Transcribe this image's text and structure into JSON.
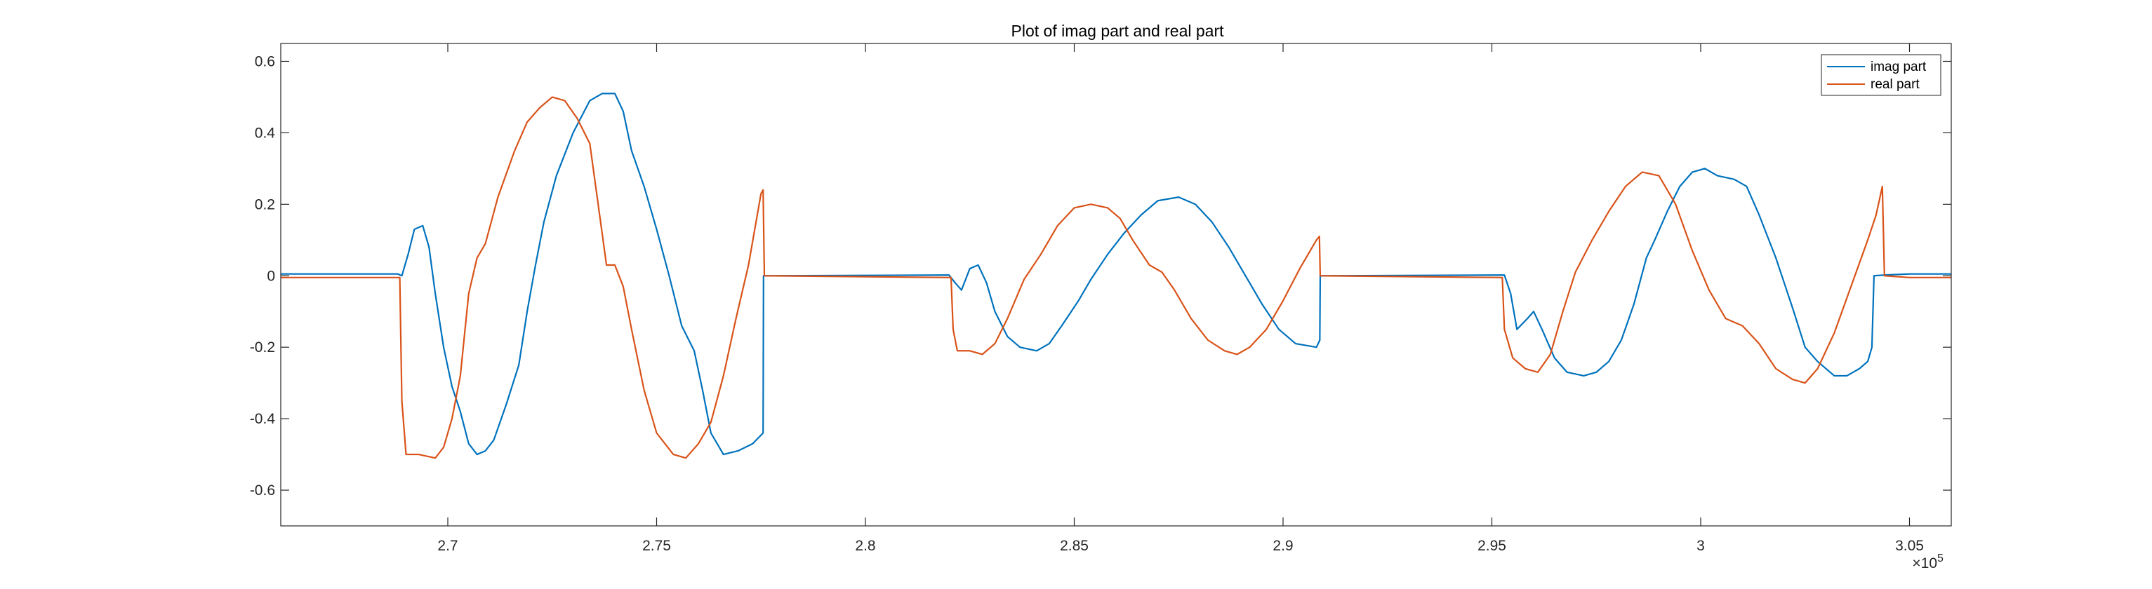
{
  "chart_data": {
    "type": "line",
    "title": "Plot of imag part and real part",
    "xlabel": "",
    "ylabel": "",
    "x_exponent_label": "×10",
    "x_exponent_power": "5",
    "xlim": [
      266000,
      306000
    ],
    "ylim": [
      -0.7,
      0.65
    ],
    "xticks": [
      270000,
      275000,
      280000,
      285000,
      290000,
      295000,
      300000,
      305000
    ],
    "xtick_labels": [
      "2.7",
      "2.75",
      "2.8",
      "2.85",
      "2.9",
      "2.95",
      "3",
      "3.05"
    ],
    "yticks": [
      -0.6,
      -0.4,
      -0.2,
      0,
      0.2,
      0.4,
      0.6
    ],
    "ytick_labels": [
      "-0.6",
      "-0.4",
      "-0.2",
      "0",
      "0.2",
      "0.4",
      "0.6"
    ],
    "grid": false,
    "legend_position": "top-right",
    "series": [
      {
        "name": "imag part",
        "color": "#0072BD",
        "points": [
          [
            266000,
            0.005
          ],
          [
            268800,
            0.005
          ],
          [
            268900,
            0.0
          ],
          [
            269050,
            0.06
          ],
          [
            269200,
            0.13
          ],
          [
            269400,
            0.14
          ],
          [
            269550,
            0.08
          ],
          [
            269700,
            -0.05
          ],
          [
            269900,
            -0.2
          ],
          [
            270100,
            -0.31
          ],
          [
            270300,
            -0.38
          ],
          [
            270500,
            -0.47
          ],
          [
            270700,
            -0.5
          ],
          [
            270900,
            -0.49
          ],
          [
            271100,
            -0.46
          ],
          [
            271400,
            -0.36
          ],
          [
            271700,
            -0.25
          ],
          [
            271900,
            -0.1
          ],
          [
            272100,
            0.03
          ],
          [
            272300,
            0.15
          ],
          [
            272600,
            0.28
          ],
          [
            273000,
            0.4
          ],
          [
            273400,
            0.49
          ],
          [
            273700,
            0.51
          ],
          [
            274000,
            0.51
          ],
          [
            274200,
            0.46
          ],
          [
            274400,
            0.35
          ],
          [
            274700,
            0.25
          ],
          [
            275000,
            0.13
          ],
          [
            275300,
            0.0
          ],
          [
            275600,
            -0.14
          ],
          [
            275900,
            -0.21
          ],
          [
            276100,
            -0.32
          ],
          [
            276300,
            -0.44
          ],
          [
            276600,
            -0.5
          ],
          [
            276950,
            -0.49
          ],
          [
            277300,
            -0.47
          ],
          [
            277550,
            -0.44
          ],
          [
            277560,
            0.0
          ],
          [
            282000,
            0.002
          ],
          [
            282150,
            -0.02
          ],
          [
            282300,
            -0.04
          ],
          [
            282500,
            0.02
          ],
          [
            282700,
            0.03
          ],
          [
            282900,
            -0.02
          ],
          [
            283100,
            -0.1
          ],
          [
            283400,
            -0.17
          ],
          [
            283700,
            -0.2
          ],
          [
            284100,
            -0.21
          ],
          [
            284400,
            -0.19
          ],
          [
            284700,
            -0.14
          ],
          [
            285100,
            -0.07
          ],
          [
            285400,
            -0.01
          ],
          [
            285800,
            0.06
          ],
          [
            286200,
            0.12
          ],
          [
            286600,
            0.17
          ],
          [
            287000,
            0.21
          ],
          [
            287500,
            0.22
          ],
          [
            287900,
            0.2
          ],
          [
            288300,
            0.15
          ],
          [
            288700,
            0.08
          ],
          [
            289100,
            0.0
          ],
          [
            289500,
            -0.08
          ],
          [
            289900,
            -0.15
          ],
          [
            290300,
            -0.19
          ],
          [
            290800,
            -0.2
          ],
          [
            290880,
            -0.18
          ],
          [
            290890,
            0.0
          ],
          [
            295300,
            0.002
          ],
          [
            295450,
            -0.05
          ],
          [
            295600,
            -0.15
          ],
          [
            295850,
            -0.12
          ],
          [
            296000,
            -0.1
          ],
          [
            296200,
            -0.15
          ],
          [
            296500,
            -0.23
          ],
          [
            296800,
            -0.27
          ],
          [
            297200,
            -0.28
          ],
          [
            297500,
            -0.27
          ],
          [
            297800,
            -0.24
          ],
          [
            298100,
            -0.18
          ],
          [
            298400,
            -0.08
          ],
          [
            298700,
            0.05
          ],
          [
            298900,
            0.1
          ],
          [
            299200,
            0.18
          ],
          [
            299500,
            0.25
          ],
          [
            299800,
            0.29
          ],
          [
            300100,
            0.3
          ],
          [
            300400,
            0.28
          ],
          [
            300800,
            0.27
          ],
          [
            301100,
            0.25
          ],
          [
            301400,
            0.17
          ],
          [
            301800,
            0.05
          ],
          [
            302200,
            -0.09
          ],
          [
            302500,
            -0.2
          ],
          [
            302800,
            -0.24
          ],
          [
            303200,
            -0.28
          ],
          [
            303500,
            -0.28
          ],
          [
            303800,
            -0.26
          ],
          [
            304000,
            -0.24
          ],
          [
            304100,
            -0.2
          ],
          [
            304150,
            0.0
          ],
          [
            304400,
            0.002
          ],
          [
            305000,
            0.005
          ],
          [
            306000,
            0.005
          ]
        ]
      },
      {
        "name": "real part",
        "color": "#D95319",
        "points": [
          [
            266000,
            -0.005
          ],
          [
            268850,
            -0.005
          ],
          [
            268900,
            -0.35
          ],
          [
            269000,
            -0.5
          ],
          [
            269300,
            -0.5
          ],
          [
            269700,
            -0.51
          ],
          [
            269900,
            -0.48
          ],
          [
            270100,
            -0.4
          ],
          [
            270300,
            -0.28
          ],
          [
            270500,
            -0.05
          ],
          [
            270700,
            0.05
          ],
          [
            270900,
            0.09
          ],
          [
            271200,
            0.22
          ],
          [
            271600,
            0.35
          ],
          [
            271900,
            0.43
          ],
          [
            272200,
            0.47
          ],
          [
            272500,
            0.5
          ],
          [
            272800,
            0.49
          ],
          [
            273100,
            0.44
          ],
          [
            273400,
            0.37
          ],
          [
            273600,
            0.2
          ],
          [
            273800,
            0.03
          ],
          [
            274000,
            0.03
          ],
          [
            274200,
            -0.03
          ],
          [
            274400,
            -0.15
          ],
          [
            274700,
            -0.32
          ],
          [
            275000,
            -0.44
          ],
          [
            275400,
            -0.5
          ],
          [
            275700,
            -0.51
          ],
          [
            276000,
            -0.47
          ],
          [
            276300,
            -0.41
          ],
          [
            276600,
            -0.28
          ],
          [
            276900,
            -0.12
          ],
          [
            277200,
            0.03
          ],
          [
            277500,
            0.23
          ],
          [
            277550,
            0.24
          ],
          [
            277580,
            0.0
          ],
          [
            282050,
            -0.005
          ],
          [
            282100,
            -0.15
          ],
          [
            282200,
            -0.21
          ],
          [
            282500,
            -0.21
          ],
          [
            282800,
            -0.22
          ],
          [
            283100,
            -0.19
          ],
          [
            283400,
            -0.12
          ],
          [
            283800,
            -0.01
          ],
          [
            284200,
            0.06
          ],
          [
            284600,
            0.14
          ],
          [
            285000,
            0.19
          ],
          [
            285400,
            0.2
          ],
          [
            285800,
            0.19
          ],
          [
            286100,
            0.16
          ],
          [
            286400,
            0.1
          ],
          [
            286800,
            0.03
          ],
          [
            287100,
            0.01
          ],
          [
            287400,
            -0.04
          ],
          [
            287800,
            -0.12
          ],
          [
            288200,
            -0.18
          ],
          [
            288600,
            -0.21
          ],
          [
            288900,
            -0.22
          ],
          [
            289200,
            -0.2
          ],
          [
            289600,
            -0.15
          ],
          [
            290000,
            -0.07
          ],
          [
            290400,
            0.02
          ],
          [
            290800,
            0.1
          ],
          [
            290870,
            0.11
          ],
          [
            290890,
            0.0
          ],
          [
            295250,
            -0.005
          ],
          [
            295300,
            -0.15
          ],
          [
            295500,
            -0.23
          ],
          [
            295800,
            -0.26
          ],
          [
            296100,
            -0.27
          ],
          [
            296400,
            -0.22
          ],
          [
            296700,
            -0.1
          ],
          [
            297000,
            0.01
          ],
          [
            297400,
            0.1
          ],
          [
            297800,
            0.18
          ],
          [
            298200,
            0.25
          ],
          [
            298600,
            0.29
          ],
          [
            299000,
            0.28
          ],
          [
            299400,
            0.2
          ],
          [
            299800,
            0.07
          ],
          [
            300200,
            -0.04
          ],
          [
            300600,
            -0.12
          ],
          [
            301000,
            -0.14
          ],
          [
            301400,
            -0.19
          ],
          [
            301800,
            -0.26
          ],
          [
            302200,
            -0.29
          ],
          [
            302500,
            -0.3
          ],
          [
            302800,
            -0.26
          ],
          [
            303200,
            -0.16
          ],
          [
            303600,
            -0.03
          ],
          [
            304000,
            0.1
          ],
          [
            304200,
            0.17
          ],
          [
            304350,
            0.25
          ],
          [
            304400,
            0.0
          ],
          [
            305000,
            -0.005
          ],
          [
            306000,
            -0.005
          ]
        ]
      }
    ]
  }
}
